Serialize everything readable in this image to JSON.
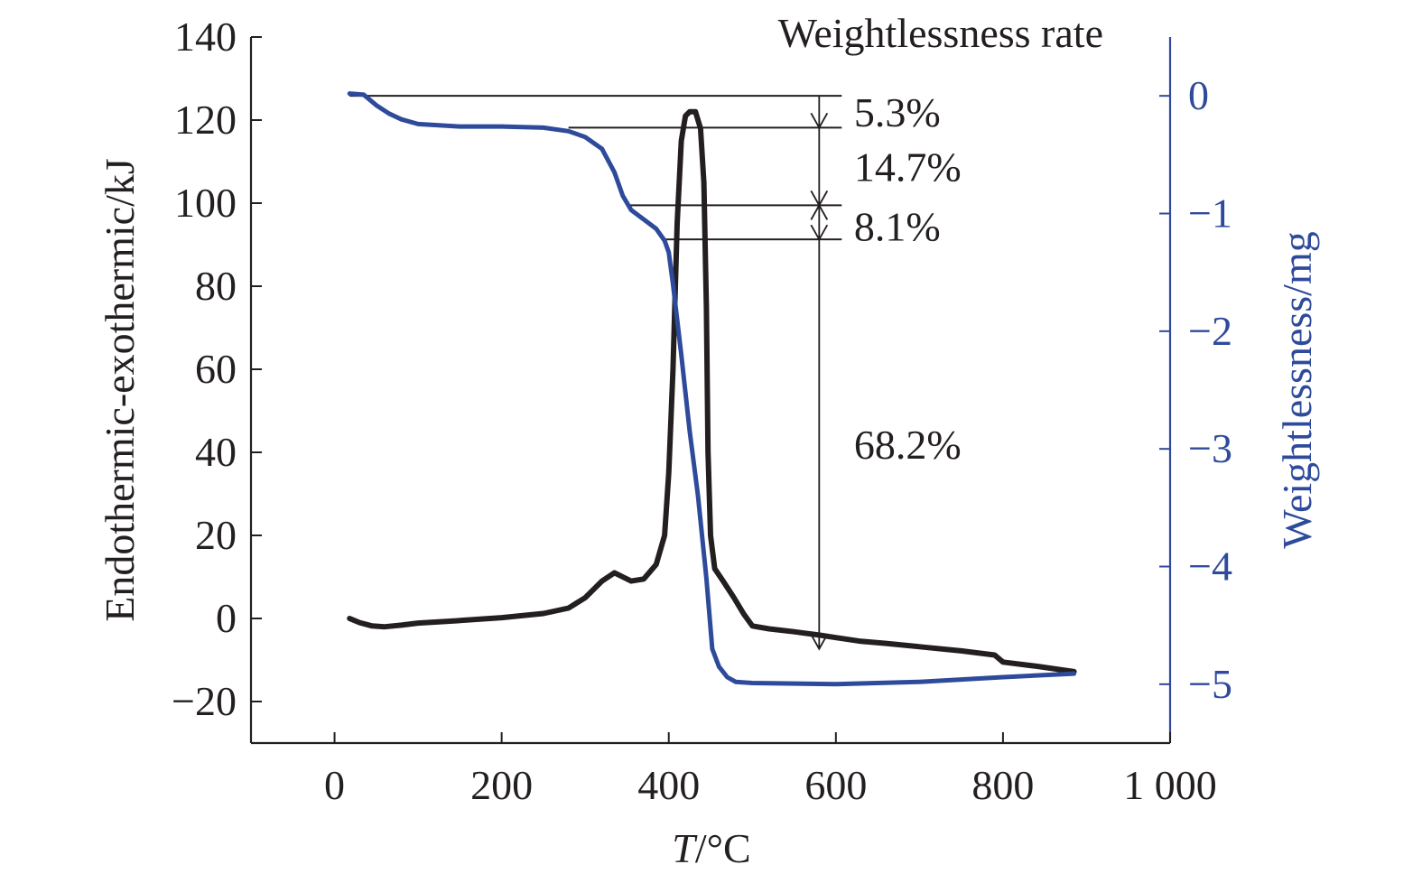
{
  "chart_data": {
    "type": "line",
    "title": "",
    "xlabel_italic": "T",
    "xlabel_rest": "/°C",
    "ylabel_left": "Endothermic-exothermic/kJ",
    "ylabel_right": "Weightlessness/mg",
    "xlim": [
      -100,
      1000
    ],
    "ylim_left": [
      -30,
      140
    ],
    "ylim_right": [
      -5.5,
      0.5
    ],
    "x_ticks": [
      0,
      200,
      400,
      600,
      800,
      1000
    ],
    "x_tick_labels": [
      "0",
      "200",
      "400",
      "600",
      "800",
      "1 000"
    ],
    "y_left_ticks": [
      -20,
      0,
      20,
      40,
      60,
      80,
      100,
      120,
      140
    ],
    "y_left_tick_labels": [
      "−20",
      "0",
      "20",
      "40",
      "60",
      "80",
      "100",
      "120",
      "140"
    ],
    "y_right_ticks": [
      0,
      -1,
      -2,
      -3,
      -4,
      -5
    ],
    "y_right_tick_labels": [
      "0",
      "−1",
      "−2",
      "−3",
      "−4",
      "−5"
    ],
    "series": [
      {
        "axis": "left",
        "color": "#231f20",
        "points": [
          [
            18,
            0
          ],
          [
            30,
            -1
          ],
          [
            45,
            -1.8
          ],
          [
            60,
            -2
          ],
          [
            80,
            -1.6
          ],
          [
            100,
            -1.1
          ],
          [
            150,
            -0.5
          ],
          [
            200,
            0.2
          ],
          [
            250,
            1.2
          ],
          [
            280,
            2.5
          ],
          [
            300,
            5
          ],
          [
            320,
            9
          ],
          [
            335,
            11
          ],
          [
            345,
            10
          ],
          [
            355,
            9
          ],
          [
            370,
            9.5
          ],
          [
            385,
            13
          ],
          [
            395,
            20
          ],
          [
            400,
            35
          ],
          [
            405,
            60
          ],
          [
            410,
            95
          ],
          [
            415,
            115
          ],
          [
            420,
            121
          ],
          [
            425,
            122
          ],
          [
            432,
            122
          ],
          [
            438,
            118
          ],
          [
            442,
            105
          ],
          [
            445,
            75
          ],
          [
            447,
            40
          ],
          [
            450,
            20
          ],
          [
            455,
            12
          ],
          [
            465,
            9
          ],
          [
            478,
            5
          ],
          [
            490,
            1
          ],
          [
            500,
            -1.8
          ],
          [
            520,
            -2.5
          ],
          [
            550,
            -3.2
          ],
          [
            580,
            -4
          ],
          [
            600,
            -4.6
          ],
          [
            630,
            -5.5
          ],
          [
            660,
            -6
          ],
          [
            700,
            -6.8
          ],
          [
            750,
            -7.8
          ],
          [
            790,
            -8.8
          ],
          [
            800,
            -10.5
          ],
          [
            840,
            -11.5
          ],
          [
            885,
            -12.8
          ]
        ]
      },
      {
        "axis": "right",
        "color": "#2e4a9b",
        "points": [
          [
            18,
            0.02
          ],
          [
            35,
            0.01
          ],
          [
            50,
            -0.08
          ],
          [
            65,
            -0.15
          ],
          [
            80,
            -0.2
          ],
          [
            100,
            -0.24
          ],
          [
            150,
            -0.26
          ],
          [
            200,
            -0.26
          ],
          [
            250,
            -0.27
          ],
          [
            280,
            -0.3
          ],
          [
            300,
            -0.35
          ],
          [
            320,
            -0.45
          ],
          [
            335,
            -0.65
          ],
          [
            345,
            -0.85
          ],
          [
            355,
            -0.97
          ],
          [
            370,
            -1.05
          ],
          [
            385,
            -1.13
          ],
          [
            395,
            -1.23
          ],
          [
            400,
            -1.33
          ],
          [
            405,
            -1.6
          ],
          [
            415,
            -2.2
          ],
          [
            425,
            -2.85
          ],
          [
            435,
            -3.4
          ],
          [
            445,
            -4.1
          ],
          [
            452,
            -4.7
          ],
          [
            460,
            -4.85
          ],
          [
            470,
            -4.94
          ],
          [
            480,
            -4.98
          ],
          [
            500,
            -4.99
          ],
          [
            600,
            -5.0
          ],
          [
            700,
            -4.98
          ],
          [
            800,
            -4.94
          ],
          [
            885,
            -4.91
          ]
        ]
      }
    ],
    "annotations": {
      "title": "Weightlessness rate",
      "labels": [
        "5.3%",
        "14.7%",
        "8.1%",
        "68.2%"
      ],
      "levels_mg": [
        0.0,
        -0.27,
        -0.93,
        -1.22,
        -4.7
      ],
      "arrow_x": 580,
      "label_x": 600,
      "right_end_x": 607
    }
  }
}
